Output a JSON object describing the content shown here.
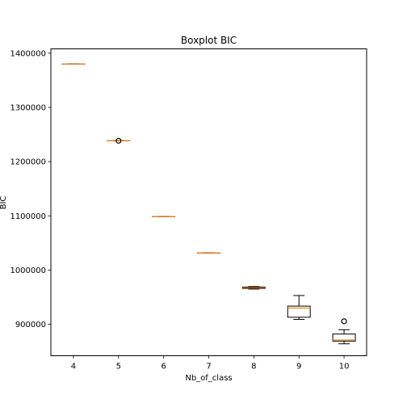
{
  "chart_data": {
    "type": "box",
    "title": "Boxplot BIC",
    "xlabel": "Nb_of_class",
    "ylabel": "BIC",
    "ylim": [
      842000,
      1408000
    ],
    "yticks": [
      900000,
      1000000,
      1100000,
      1200000,
      1300000,
      1400000
    ],
    "ytick_labels": [
      "900000",
      "1000000",
      "1100000",
      "1200000",
      "1300000",
      "1400000"
    ],
    "grid": false,
    "categories": [
      "4",
      "5",
      "6",
      "7",
      "8",
      "9",
      "10"
    ],
    "boxes": [
      {
        "category": "4",
        "whislo": 1380000,
        "q1": 1380000,
        "med": 1380000,
        "q3": 1380000,
        "whishi": 1380000,
        "fliers": []
      },
      {
        "category": "5",
        "whislo": 1238500,
        "q1": 1238500,
        "med": 1238500,
        "q3": 1238500,
        "whishi": 1238500,
        "fliers": [
          1238500
        ]
      },
      {
        "category": "6",
        "whislo": 1098500,
        "q1": 1098500,
        "med": 1098500,
        "q3": 1098500,
        "whishi": 1098500,
        "fliers": []
      },
      {
        "category": "7",
        "whislo": 1031500,
        "q1": 1031500,
        "med": 1031500,
        "q3": 1031500,
        "whishi": 1031500,
        "fliers": []
      },
      {
        "category": "8",
        "whislo": 965000,
        "q1": 966000,
        "med": 967000,
        "q3": 968500,
        "whishi": 969500,
        "fliers": []
      },
      {
        "category": "9",
        "whislo": 909000,
        "q1": 913000,
        "med": 930000,
        "q3": 933500,
        "whishi": 953000,
        "fliers": []
      },
      {
        "category": "10",
        "whislo": 864000,
        "q1": 869000,
        "med": 871000,
        "q3": 882000,
        "whishi": 890000,
        "fliers": [
          905500
        ]
      }
    ],
    "colors": {
      "box": "#000000",
      "median": "#ff7f0e",
      "axes": "#000000",
      "background": "#ffffff"
    }
  }
}
